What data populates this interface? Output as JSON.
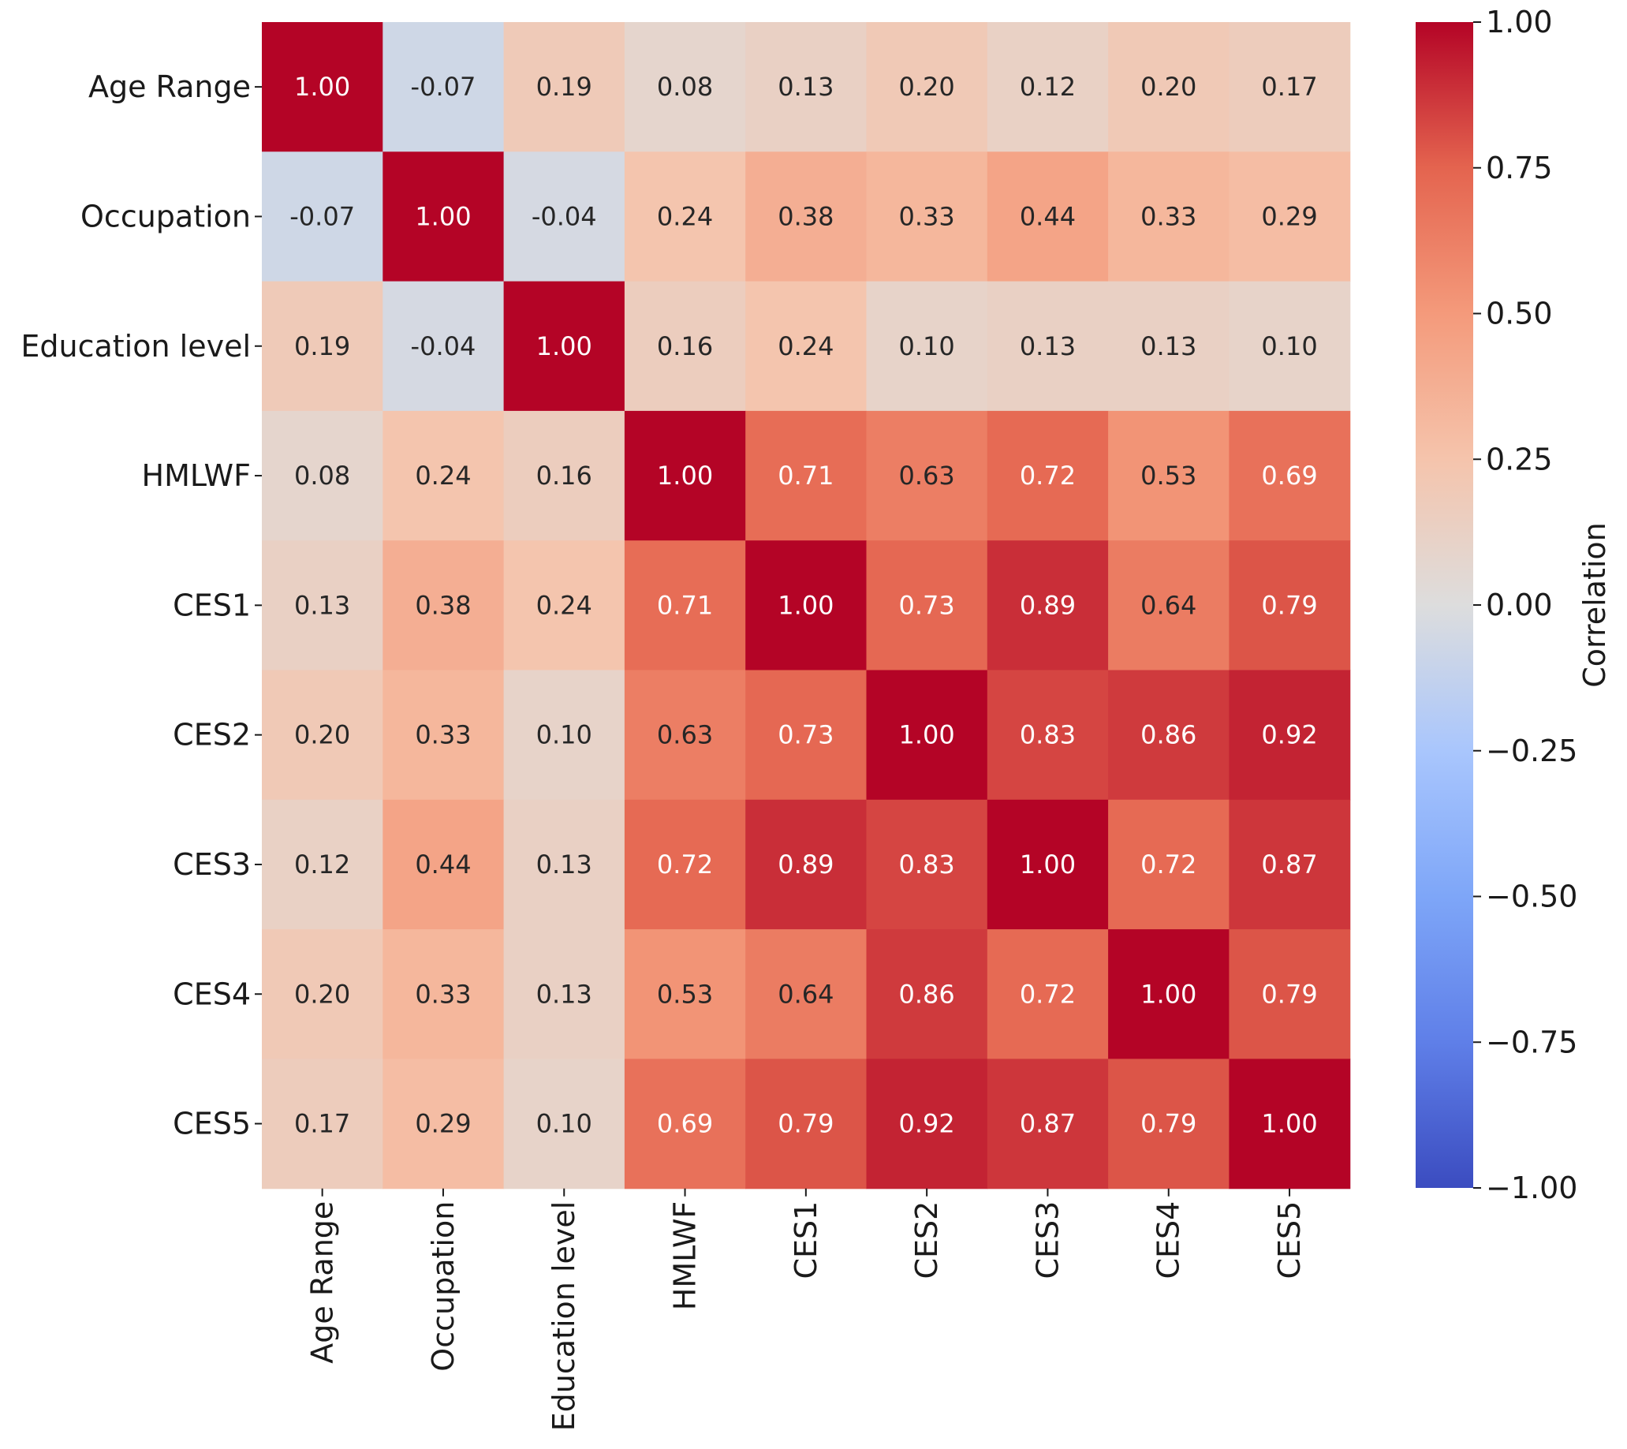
{
  "chart_data": {
    "type": "heatmap",
    "title": "",
    "rows": [
      "Age Range",
      "Occupation",
      "Education level",
      "HMLWF",
      "CES1",
      "CES2",
      "CES3",
      "CES4",
      "CES5"
    ],
    "columns": [
      "Age Range",
      "Occupation",
      "Education level",
      "HMLWF",
      "CES1",
      "CES2",
      "CES3",
      "CES4",
      "CES5"
    ],
    "values": [
      [
        1.0,
        -0.07,
        0.19,
        0.08,
        0.13,
        0.2,
        0.12,
        0.2,
        0.17
      ],
      [
        -0.07,
        1.0,
        -0.04,
        0.24,
        0.38,
        0.33,
        0.44,
        0.33,
        0.29
      ],
      [
        0.19,
        -0.04,
        1.0,
        0.16,
        0.24,
        0.1,
        0.13,
        0.13,
        0.1
      ],
      [
        0.08,
        0.24,
        0.16,
        1.0,
        0.71,
        0.63,
        0.72,
        0.53,
        0.69
      ],
      [
        0.13,
        0.38,
        0.24,
        0.71,
        1.0,
        0.73,
        0.89,
        0.64,
        0.79
      ],
      [
        0.2,
        0.33,
        0.1,
        0.63,
        0.73,
        1.0,
        0.83,
        0.86,
        0.92
      ],
      [
        0.12,
        0.44,
        0.13,
        0.72,
        0.89,
        0.83,
        1.0,
        0.72,
        0.87
      ],
      [
        0.2,
        0.33,
        0.13,
        0.53,
        0.64,
        0.86,
        0.72,
        1.0,
        0.79
      ],
      [
        0.17,
        0.29,
        0.1,
        0.69,
        0.79,
        0.92,
        0.87,
        0.79,
        1.0
      ]
    ],
    "value_labels": [
      [
        "1.00",
        "-0.07",
        "0.19",
        "0.08",
        "0.13",
        "0.20",
        "0.12",
        "0.20",
        "0.17"
      ],
      [
        "-0.07",
        "1.00",
        "-0.04",
        "0.24",
        "0.38",
        "0.33",
        "0.44",
        "0.33",
        "0.29"
      ],
      [
        "0.19",
        "-0.04",
        "1.00",
        "0.16",
        "0.24",
        "0.10",
        "0.13",
        "0.13",
        "0.10"
      ],
      [
        "0.08",
        "0.24",
        "0.16",
        "1.00",
        "0.71",
        "0.63",
        "0.72",
        "0.53",
        "0.69"
      ],
      [
        "0.13",
        "0.38",
        "0.24",
        "0.71",
        "1.00",
        "0.73",
        "0.89",
        "0.64",
        "0.79"
      ],
      [
        "0.20",
        "0.33",
        "0.10",
        "0.63",
        "0.73",
        "1.00",
        "0.83",
        "0.86",
        "0.92"
      ],
      [
        "0.12",
        "0.44",
        "0.13",
        "0.72",
        "0.89",
        "0.83",
        "1.00",
        "0.72",
        "0.87"
      ],
      [
        "0.20",
        "0.33",
        "0.13",
        "0.53",
        "0.64",
        "0.86",
        "0.72",
        "1.00",
        "0.79"
      ],
      [
        "0.17",
        "0.29",
        "0.10",
        "0.69",
        "0.79",
        "0.92",
        "0.87",
        "0.79",
        "1.00"
      ]
    ],
    "colormap": "coolwarm",
    "vmin": -1.0,
    "vmax": 1.0,
    "colorbar": {
      "label": "Correlation",
      "ticks": [
        1.0,
        0.75,
        0.5,
        0.25,
        0.0,
        -0.25,
        -0.5,
        -0.75,
        -1.0
      ],
      "tick_labels": [
        "1.00",
        "0.75",
        "0.50",
        "0.25",
        "0.00",
        "−0.25",
        "−0.50",
        "−0.75",
        "−1.00"
      ],
      "position": "right"
    },
    "colors": {
      "low": "#3b4cc0",
      "mid": "#dddddd",
      "high": "#b40426",
      "text_dark": "#262626",
      "text_light": "#ffffff"
    }
  }
}
